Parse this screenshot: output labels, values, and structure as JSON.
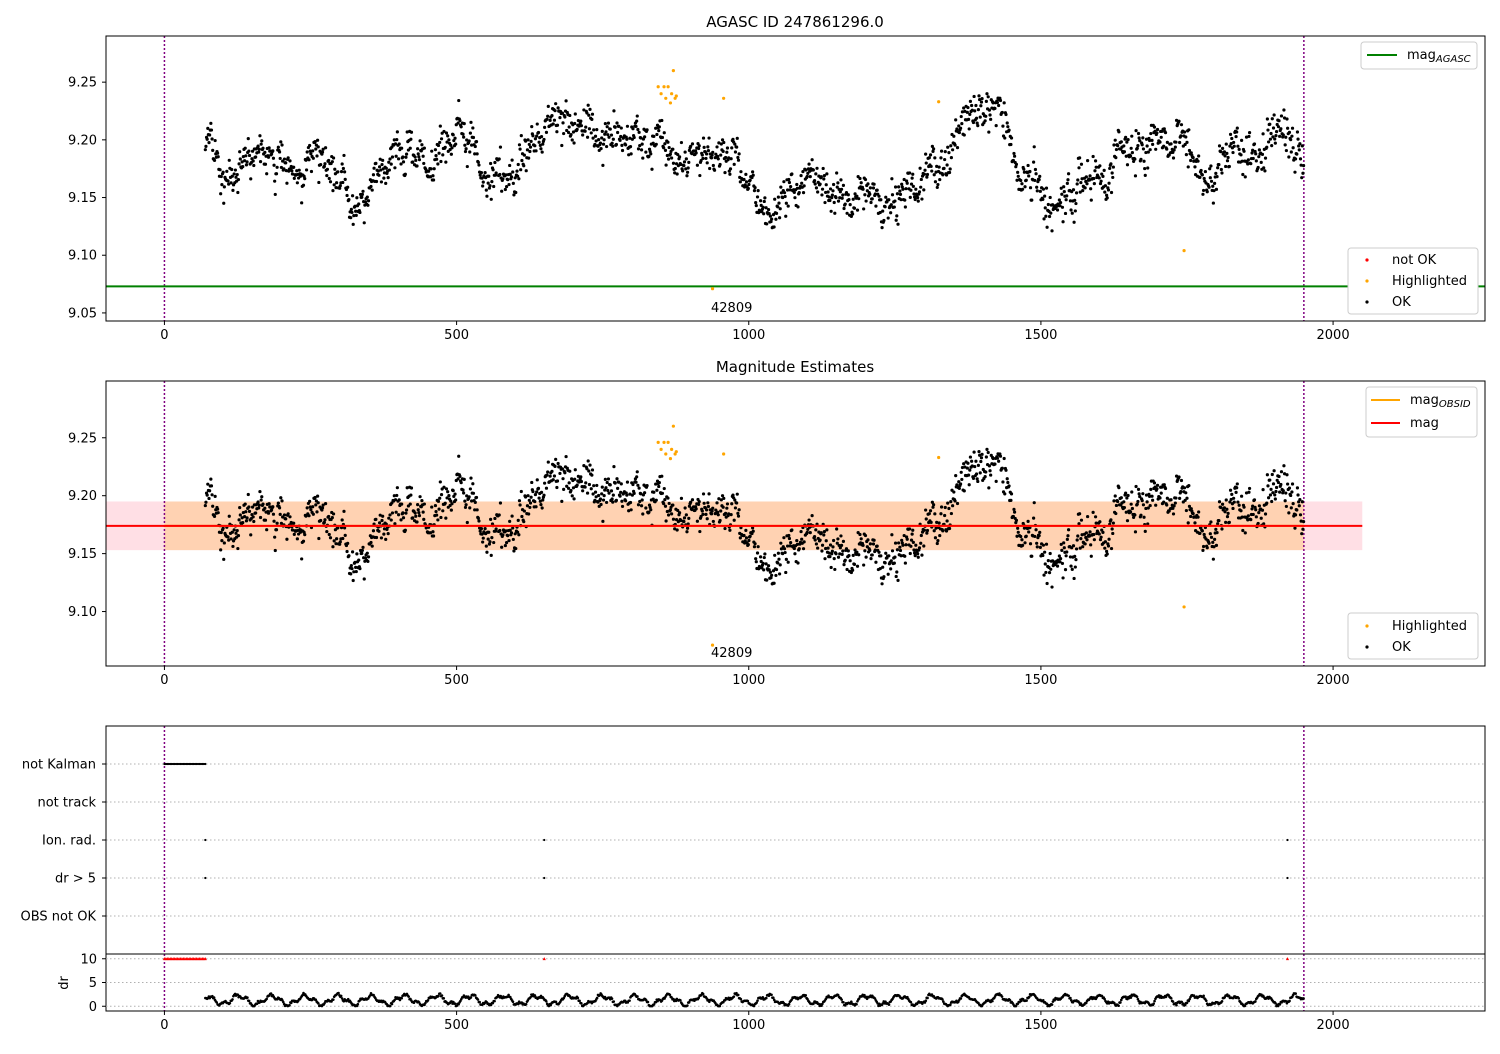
{
  "chart_data": [
    {
      "type": "scatter",
      "title": "AGASC ID 247861296.0",
      "xlabel": "",
      "ylabel": "",
      "xlim": [
        -100,
        2260
      ],
      "ylim": [
        9.043,
        9.29
      ],
      "xticks": [
        "0",
        "500",
        "1000",
        "1500",
        "2000"
      ],
      "yticks": [
        "9.05",
        "9.10",
        "9.15",
        "9.20",
        "9.25"
      ],
      "vlines": [
        0,
        1950
      ],
      "hline": {
        "value": 9.073,
        "color": "#008000"
      },
      "annotation": {
        "text": "42809",
        "x": 938,
        "y": 9.071
      },
      "legend_top": {
        "position": "top-right",
        "entries": [
          {
            "label": "mag",
            "subscript": "AGASC",
            "color": "#008000"
          }
        ]
      },
      "legend_bottom": {
        "position": "bottom-right",
        "entries": [
          {
            "label": "not OK",
            "color": "#ff0000"
          },
          {
            "label": "Highlighted",
            "color": "#ffa500"
          },
          {
            "label": "OK",
            "color": "#000000"
          }
        ]
      },
      "series": [
        {
          "name": "OK",
          "color": "#000000",
          "x_range": [
            70,
            1950
          ],
          "mean": 9.174,
          "std": 0.02
        },
        {
          "name": "Highlighted",
          "color": "#ffa500",
          "points": [
            [
              845,
              9.246
            ],
            [
              850,
              9.24
            ],
            [
              855,
              9.246
            ],
            [
              858,
              9.236
            ],
            [
              862,
              9.246
            ],
            [
              866,
              9.232
            ],
            [
              868,
              9.24
            ],
            [
              871,
              9.26
            ],
            [
              874,
              9.236
            ],
            [
              876,
              9.238
            ],
            [
              957,
              9.236
            ],
            [
              1325,
              9.233
            ],
            [
              1745,
              9.104
            ],
            [
              938,
              9.071
            ]
          ]
        }
      ]
    },
    {
      "type": "scatter",
      "title": "Magnitude Estimates",
      "xlabel": "",
      "ylabel": "",
      "xlim": [
        -100,
        2260
      ],
      "ylim": [
        9.053,
        9.299
      ],
      "xticks": [
        "0",
        "500",
        "1000",
        "1500",
        "2000"
      ],
      "yticks": [
        "9.10",
        "9.15",
        "9.20",
        "9.25"
      ],
      "vlines": [
        0,
        1950
      ],
      "annotation": {
        "text": "42809",
        "x": 938,
        "y": 9.071
      },
      "mag_line": {
        "value": 9.174,
        "color": "#ff0000"
      },
      "mag_band": {
        "low": 9.153,
        "high": 9.195,
        "x_range": [
          -100,
          2050
        ],
        "color": "#ffc0cb"
      },
      "obsid_band": {
        "low": 9.153,
        "high": 9.195,
        "x_range": [
          0,
          1950
        ],
        "color": "#ffa500"
      },
      "legend_top": {
        "position": "top-right",
        "entries": [
          {
            "label": "mag",
            "subscript": "OBSID",
            "color": "#ffa500"
          },
          {
            "label": "mag",
            "color": "#ff0000"
          }
        ]
      },
      "legend_bottom": {
        "position": "bottom-right",
        "entries": [
          {
            "label": "Highlighted",
            "color": "#ffa500"
          },
          {
            "label": "OK",
            "color": "#000000"
          }
        ]
      }
    },
    {
      "type": "scatter",
      "title": "",
      "xlabel": "",
      "xlim": [
        -100,
        2260
      ],
      "xticks": [
        "0",
        "500",
        "1000",
        "1500",
        "2000"
      ],
      "vlines": [
        0,
        1950
      ],
      "flags": {
        "categories": [
          "not Kalman",
          "not track",
          "Ion. rad.",
          "dr > 5",
          "OBS not OK"
        ],
        "not_kalman_range": [
          0,
          70
        ],
        "ion_rad_x": [
          70,
          650,
          1922
        ],
        "dr_gt_5_x": [
          70,
          650,
          1922
        ]
      },
      "dr": {
        "ylabel": "dr",
        "yticks": [
          "0",
          "5",
          "10"
        ],
        "ylim": [
          -1,
          11
        ],
        "capped_value": 10,
        "capped_range": [
          0,
          70
        ],
        "capped_x": [
          650,
          1922
        ],
        "x_range": [
          70,
          1950
        ],
        "mean": 1.3
      }
    }
  ]
}
